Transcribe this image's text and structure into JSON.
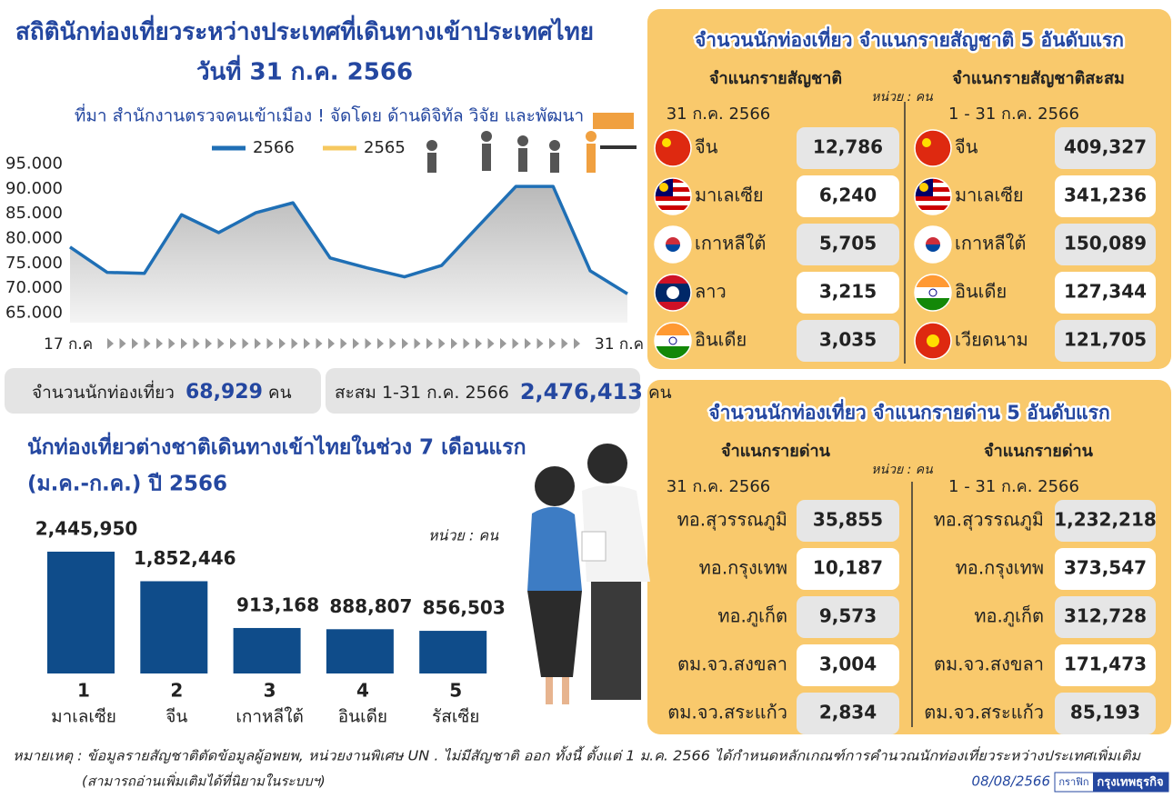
{
  "header": {
    "title": "สถิตินักท่องเที่ยวระหว่างประเทศที่เดินทางเข้าประเทศไทย",
    "subtitle": "วันที่ 31 ก.ค. 2566",
    "source": "ที่มา สำนักงานตรวจคนเข้าเมือง ! จัดโดย ด้านดิจิทัล วิจัย และพัฒนา"
  },
  "chart_data": [
    {
      "type": "line",
      "categories": [
        "17 ก.ค",
        null,
        null,
        null,
        null,
        null,
        null,
        null,
        null,
        null,
        null,
        null,
        null,
        null,
        null,
        "31 ก.ค"
      ],
      "series": [
        {
          "name": "2566",
          "color": "#1f6fb5",
          "values": [
            78300,
            73200,
            73000,
            84800,
            81200,
            85200,
            87200,
            76100,
            74100,
            72300,
            74600,
            82600,
            90500,
            90500,
            73500,
            68900
          ]
        },
        {
          "name": "2565",
          "color": "#f6c85f",
          "values": [
            null,
            null,
            null,
            null,
            null,
            null,
            null,
            null,
            null,
            null,
            null,
            null,
            null,
            null,
            null,
            null
          ]
        }
      ],
      "ylim": [
        64000,
        96000
      ],
      "yticks": [
        {
          "value": 95000,
          "label": "95.000"
        },
        {
          "value": 90000,
          "label": "90.000"
        },
        {
          "value": 85000,
          "label": "85.000"
        },
        {
          "value": 80000,
          "label": "80.000"
        },
        {
          "value": 75000,
          "label": "75.000"
        },
        {
          "value": 70000,
          "label": "70.000"
        },
        {
          "value": 65000,
          "label": "65.000"
        }
      ]
    },
    {
      "type": "bar",
      "title": "นักท่องเที่ยวต่างชาติเดินทางเข้าไทยในช่วง 7 เดือนแรก",
      "subtitle": "(ม.ค.-ก.ค.) ปี 2566",
      "unit": "หน่วย : คน",
      "ranks": [
        "1",
        "2",
        "3",
        "4",
        "5"
      ],
      "categories": [
        "มาเลเซีย",
        "จีน",
        "เกาหลีใต้",
        "อินเดีย",
        "รัสเซีย"
      ],
      "values": [
        2445950,
        1852446,
        913168,
        888807,
        856503
      ],
      "value_labels": [
        "2,445,950",
        "1,852,446",
        "913,168",
        "888,807",
        "856,503"
      ],
      "color": "#0f4c8a",
      "ylim": [
        0,
        2500000
      ]
    }
  ],
  "summary": [
    {
      "label": "จำนวนนักท่องเที่ยว",
      "value": "68,929",
      "unit": "คน"
    },
    {
      "label": "สะสม 1-31 ก.ค. 2566",
      "value": "2,476,413",
      "unit": "คน"
    }
  ],
  "nationality": {
    "title": "จำนวนนักท่องเที่ยว จำแนกรายสัญชาติ 5 อันดับแรก",
    "unit": "หน่วย : คน",
    "columns": [
      {
        "header": "จำแนกรายสัญชาติ",
        "period": "31 ก.ค. 2566",
        "rows": [
          {
            "name": "จีน",
            "value": "12,786"
          },
          {
            "name": "มาเลเซีย",
            "value": "6,240"
          },
          {
            "name": "เกาหลีใต้",
            "value": "5,705"
          },
          {
            "name": "ลาว",
            "value": "3,215"
          },
          {
            "name": "อินเดีย",
            "value": "3,035"
          }
        ]
      },
      {
        "header": "จำแนกรายสัญชาติสะสม",
        "period": "1 - 31 ก.ค. 2566",
        "rows": [
          {
            "name": "จีน",
            "value": "409,327"
          },
          {
            "name": "มาเลเซีย",
            "value": "341,236"
          },
          {
            "name": "เกาหลีใต้",
            "value": "150,089"
          },
          {
            "name": "อินเดีย",
            "value": "127,344"
          },
          {
            "name": "เวียดนาม",
            "value": "121,705"
          }
        ]
      }
    ]
  },
  "checkpoint": {
    "title": "จำนวนนักท่องเที่ยว จำแนกรายด่าน 5 อันดับแรก",
    "unit": "หน่วย : คน",
    "columns": [
      {
        "header": "จำแนกรายด่าน",
        "period": "31 ก.ค. 2566",
        "rows": [
          {
            "name": "ทอ.สุวรรณภูมิ",
            "value": "35,855"
          },
          {
            "name": "ทอ.กรุงเทพ",
            "value": "10,187"
          },
          {
            "name": "ทอ.ภูเก็ต",
            "value": "9,573"
          },
          {
            "name": "ตม.จว.สงขลา",
            "value": "3,004"
          },
          {
            "name": "ตม.จว.สระแก้ว",
            "value": "2,834"
          }
        ]
      },
      {
        "header": "จำแนกรายด่าน",
        "period": "1 - 31 ก.ค. 2566",
        "rows": [
          {
            "name": "ทอ.สุวรรณภูมิ",
            "value": "1,232,218"
          },
          {
            "name": "ทอ.กรุงเทพ",
            "value": "373,547"
          },
          {
            "name": "ทอ.ภูเก็ต",
            "value": "312,728"
          },
          {
            "name": "ตม.จว.สงขลา",
            "value": "171,473"
          },
          {
            "name": "ตม.จว.สระแก้ว",
            "value": "85,193"
          }
        ]
      }
    ]
  },
  "footnote": {
    "note": "หมายเหตุ : ข้อมูลรายสัญชาติตัดข้อมูลผู้อพยพ, หน่วยงานพิเศษ UN . ไม่มีสัญชาติ ออก ทั้งนี้ ตั้งแต่ 1 ม.ค. 2566 ได้กำหนดหลักเกณฑ์การคำนวณนักท่องเที่ยวระหว่างประเทศเพิ่มเติม",
    "note2": "(สามารถอ่านเพิ่มเติมได้ที่นิยามในระบบฯ)",
    "date": "08/08/2566",
    "credit_label": "กราฟิก",
    "credit": "กรุงเทพธุรกิจ"
  }
}
